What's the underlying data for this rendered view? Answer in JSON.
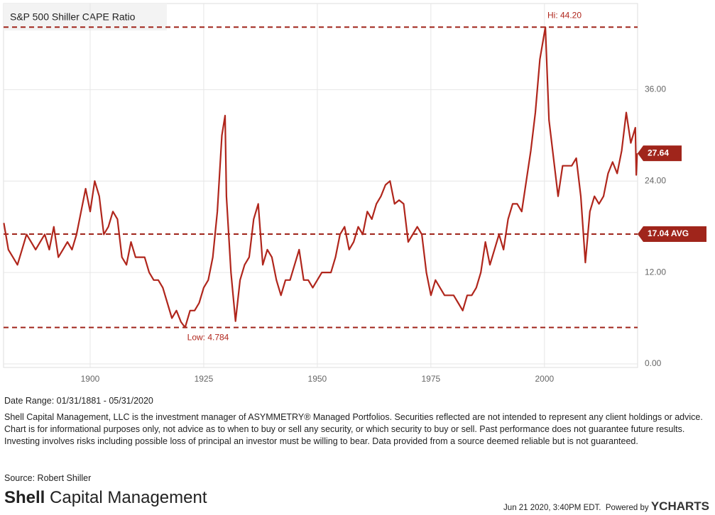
{
  "chart_data": {
    "type": "line",
    "title": "S&P 500 Shiller CAPE Ratio",
    "color": "#b0261c",
    "x": [
      1881,
      1882,
      1883,
      1884,
      1885,
      1886,
      1887,
      1888,
      1889,
      1890,
      1891,
      1892,
      1893,
      1894,
      1895,
      1896,
      1897,
      1898,
      1899,
      1900,
      1901,
      1902,
      1903,
      1904,
      1905,
      1906,
      1907,
      1908,
      1909,
      1910,
      1911,
      1912,
      1913,
      1914,
      1915,
      1916,
      1917,
      1918,
      1919,
      1920,
      1920.9,
      1922,
      1923,
      1924,
      1925,
      1926,
      1927,
      1928,
      1929,
      1929.7,
      1930,
      1931,
      1932,
      1933,
      1934,
      1935,
      1936,
      1937,
      1938,
      1939,
      1940,
      1941,
      1942,
      1943,
      1944,
      1945,
      1946,
      1947,
      1948,
      1949,
      1950,
      1951,
      1952,
      1953,
      1954,
      1955,
      1956,
      1957,
      1958,
      1959,
      1960,
      1961,
      1962,
      1963,
      1964,
      1965,
      1966,
      1967,
      1968,
      1969,
      1970,
      1971,
      1972,
      1973,
      1974,
      1975,
      1976,
      1977,
      1978,
      1979,
      1980,
      1981,
      1982,
      1983,
      1984,
      1985,
      1986,
      1987,
      1988,
      1989,
      1990,
      1991,
      1992,
      1993,
      1994,
      1995,
      1996,
      1997,
      1998,
      1999,
      2000,
      2000.2,
      2001,
      2002,
      2003,
      2004,
      2005,
      2006,
      2007,
      2008,
      2009,
      2010,
      2011,
      2012,
      2013,
      2014,
      2015,
      2016,
      2017,
      2018,
      2019,
      2020,
      2020.2,
      2020.4
    ],
    "values": [
      18.5,
      15,
      14,
      13,
      15,
      17,
      16,
      15,
      16,
      17,
      15,
      18,
      14,
      15,
      16,
      15,
      17,
      20,
      23,
      20,
      24,
      22,
      17,
      18,
      20,
      19,
      14,
      13,
      16,
      14,
      14,
      14,
      12,
      11,
      11,
      10,
      8,
      6,
      7,
      5.5,
      4.784,
      7,
      7,
      8,
      10,
      11,
      14,
      20,
      30,
      32.6,
      22,
      12,
      5.6,
      11,
      13,
      14,
      19,
      21,
      13,
      15,
      14,
      11,
      9,
      11,
      11,
      13,
      15,
      11,
      11,
      10,
      11,
      12,
      12,
      12,
      14,
      17,
      18,
      15,
      16,
      18,
      17,
      20,
      19,
      21,
      22,
      23.5,
      24,
      21,
      21.5,
      21,
      16,
      17,
      18,
      17,
      12,
      9,
      11,
      10,
      9,
      9,
      9,
      8,
      7,
      9,
      9,
      10,
      12,
      16,
      13,
      15,
      17,
      15,
      19,
      21,
      21,
      20,
      24,
      28,
      33,
      40,
      43.5,
      44.2,
      32,
      27,
      22,
      26,
      26,
      26,
      27,
      22,
      13.3,
      20,
      22,
      21,
      22,
      25,
      26.5,
      25,
      28,
      33,
      29,
      31,
      24.8,
      27.64
    ],
    "reference_lines": [
      {
        "value": 44.2,
        "label": "Hi: 44.20"
      },
      {
        "value": 4.784,
        "label": "Low: 4.784"
      },
      {
        "value": 17.04,
        "label": "17.04 AVG"
      }
    ],
    "xlim": [
      1880.94,
      2020.5
    ],
    "ylim": [
      -0.47,
      47.3
    ],
    "xticks": [
      1900,
      1925,
      1950,
      1975,
      2000
    ],
    "yticks": [
      {
        "value": 0,
        "label": "0.00"
      },
      {
        "value": 12,
        "label": "12.00"
      },
      {
        "value": 24,
        "label": "24.00"
      },
      {
        "value": 36,
        "label": "36.00"
      }
    ],
    "grid": true
  },
  "footer": {
    "date_range": "Date Range: 01/31/1881 - 05/31/2020",
    "disclaimer": "Shell Capital Management, LLC is the investment manager of ASYMMETRY® Managed Portfolios. Securities reflected are not intended to represent any client holdings or advice. Chart is for informational purposes only, not advice as to when to buy or sell any security, or which security to buy or sell. Past performance does not guarantee future results. Investing involves risks including possible loss of principal an investor must be willing to bear. Data provided from a source deemed reliable but is not guaranteed.",
    "source": "Source: Robert Shiller",
    "brand_bold": "Shell",
    "brand_rest": "Capital Management",
    "timestamp": "Jun 21 2020, 3:40PM EDT.",
    "powered_by": "Powered by",
    "ycharts": "YCHARTS"
  }
}
